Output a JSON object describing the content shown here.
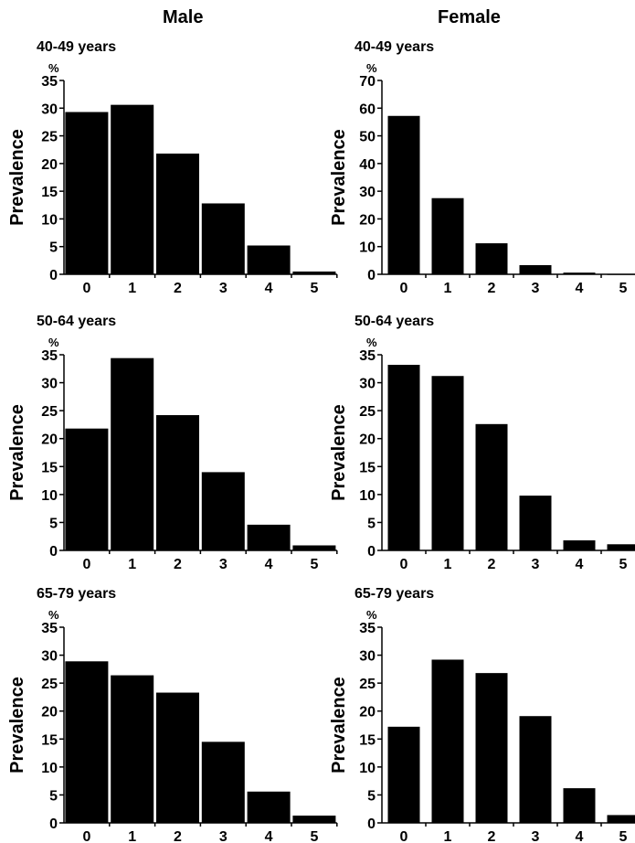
{
  "columns": [
    "Male",
    "Female"
  ],
  "y_axis_label": "Prevalence",
  "y_unit": "%",
  "chart_data": [
    {
      "type": "bar",
      "title": "40-49 years",
      "group": "Male",
      "categories": [
        "0",
        "1",
        "2",
        "3",
        "4",
        "5"
      ],
      "values": [
        29.3,
        30.6,
        21.8,
        12.8,
        5.2,
        0.5
      ],
      "ylabel": "Prevalence",
      "yunit": "%",
      "ylim": [
        0,
        35
      ],
      "yticks": [
        0,
        5,
        10,
        15,
        20,
        25,
        30,
        35
      ],
      "color": "#000000"
    },
    {
      "type": "bar",
      "title": "40-49 years",
      "group": "Female",
      "categories": [
        "0",
        "1",
        "2",
        "3",
        "4",
        "5"
      ],
      "values": [
        57.2,
        27.5,
        11.2,
        3.3,
        0.6,
        0.1
      ],
      "ylabel": "Prevalence",
      "yunit": "%",
      "ylim": [
        0,
        70
      ],
      "yticks": [
        0,
        10,
        20,
        30,
        40,
        50,
        60,
        70
      ],
      "color": "#000000"
    },
    {
      "type": "bar",
      "title": "50-64 years",
      "group": "Male",
      "categories": [
        "0",
        "1",
        "2",
        "3",
        "4",
        "5"
      ],
      "values": [
        21.8,
        34.4,
        24.2,
        14.0,
        4.6,
        0.9
      ],
      "ylabel": "Prevalence",
      "yunit": "%",
      "ylim": [
        0,
        35
      ],
      "yticks": [
        0,
        5,
        10,
        15,
        20,
        25,
        30,
        35
      ],
      "color": "#000000"
    },
    {
      "type": "bar",
      "title": "50-64 years",
      "group": "Female",
      "categories": [
        "0",
        "1",
        "2",
        "3",
        "4",
        "5"
      ],
      "values": [
        33.2,
        31.2,
        22.6,
        9.8,
        1.8,
        1.1
      ],
      "ylabel": "Prevalence",
      "yunit": "%",
      "ylim": [
        0,
        35
      ],
      "yticks": [
        0,
        5,
        10,
        15,
        20,
        25,
        30,
        35
      ],
      "color": "#000000"
    },
    {
      "type": "bar",
      "title": "65-79 years",
      "group": "Male",
      "categories": [
        "0",
        "1",
        "2",
        "3",
        "4",
        "5"
      ],
      "values": [
        28.9,
        26.4,
        23.3,
        14.5,
        5.6,
        1.3
      ],
      "ylabel": "Prevalence",
      "yunit": "%",
      "ylim": [
        0,
        35
      ],
      "yticks": [
        0,
        5,
        10,
        15,
        20,
        25,
        30,
        35
      ],
      "color": "#000000"
    },
    {
      "type": "bar",
      "title": "65-79 years",
      "group": "Female",
      "categories": [
        "0",
        "1",
        "2",
        "3",
        "4",
        "5"
      ],
      "values": [
        17.2,
        29.2,
        26.8,
        19.1,
        6.2,
        1.4
      ],
      "ylabel": "Prevalence",
      "yunit": "%",
      "ylim": [
        0,
        35
      ],
      "yticks": [
        0,
        5,
        10,
        15,
        20,
        25,
        30,
        35
      ],
      "color": "#000000"
    }
  ]
}
